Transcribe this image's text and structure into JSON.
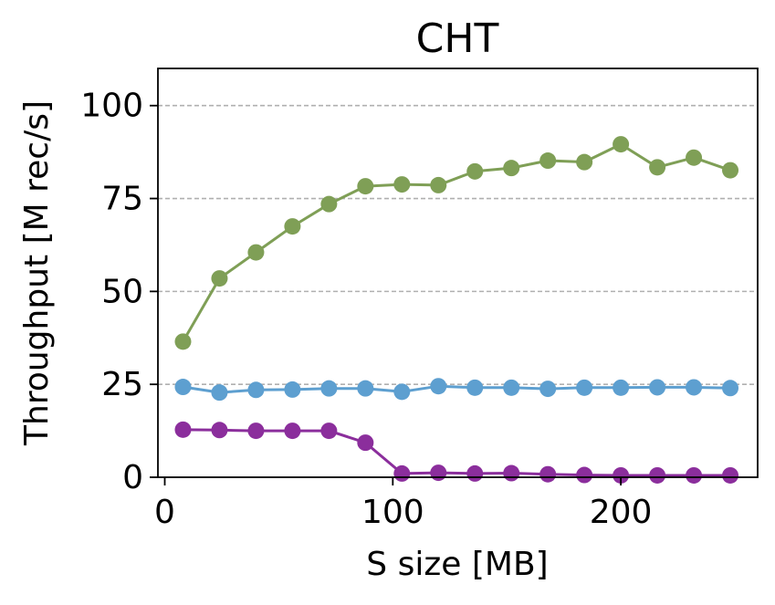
{
  "chart_data": {
    "type": "line",
    "title": "CHT",
    "xlabel": "S size [MB]",
    "ylabel": "Throughput [M rec/s]",
    "xlim": [
      -3,
      260
    ],
    "ylim": [
      0,
      110
    ],
    "x_ticks": [
      0,
      100,
      200
    ],
    "y_ticks": [
      0,
      25,
      50,
      75,
      100
    ],
    "grid": "y-dashed",
    "x": [
      8,
      24,
      40,
      56,
      72,
      88,
      104,
      120,
      136,
      152,
      168,
      184,
      200,
      216,
      232,
      248
    ],
    "series": [
      {
        "color": "#7f9f56",
        "values": [
          36.5,
          53.5,
          60.5,
          67.5,
          73.5,
          78.3,
          78.8,
          78.6,
          82.3,
          83.2,
          85.2,
          84.8,
          89.6,
          83.4,
          86.0,
          82.6
        ]
      },
      {
        "color": "#5d9fd0",
        "values": [
          24.3,
          22.8,
          23.5,
          23.6,
          23.9,
          23.9,
          23.0,
          24.5,
          24.1,
          24.1,
          23.8,
          24.1,
          24.1,
          24.2,
          24.2,
          24.0
        ]
      },
      {
        "color": "#8b2e9c",
        "values": [
          12.8,
          12.7,
          12.5,
          12.5,
          12.5,
          9.3,
          1.0,
          1.2,
          1.0,
          1.1,
          0.8,
          0.6,
          0.5,
          0.5,
          0.5,
          0.5
        ]
      }
    ]
  }
}
